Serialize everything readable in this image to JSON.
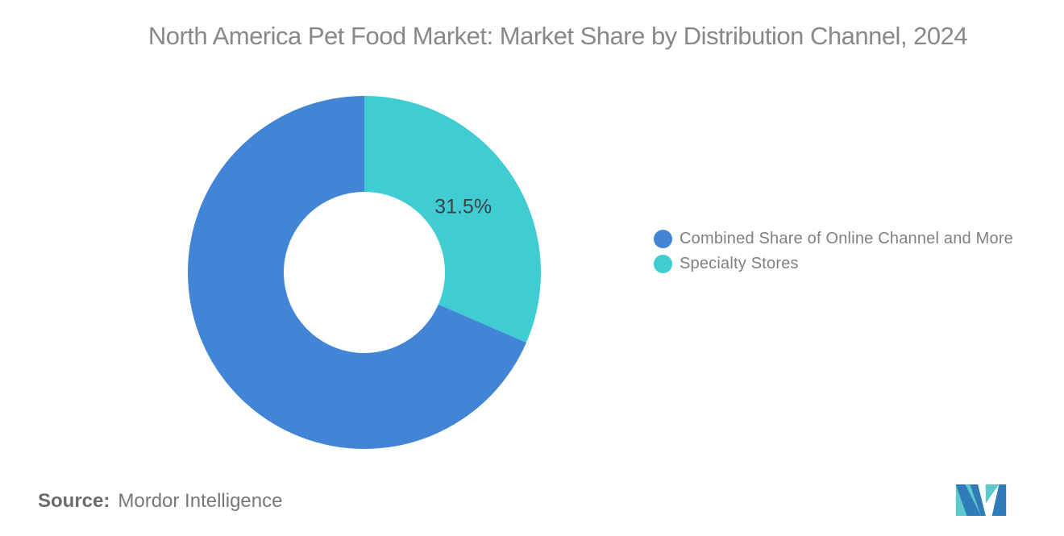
{
  "header": {
    "title": "North America Pet Food Market: Market Share by Distribution Channel, 2024"
  },
  "chart_data": {
    "type": "pie",
    "donut": true,
    "title": "North America Pet Food Market: Market Share by Distribution Channel, 2024",
    "start_angle_deg": 0,
    "direction": "clockwise",
    "inner_radius_ratio": 0.457,
    "slices": [
      {
        "label": "Specialty Stores",
        "value": 31.5,
        "color": "#3fccd2",
        "data_label": "31.5%"
      },
      {
        "label": "Combined Share of Online Channel and More",
        "value": 68.5,
        "color": "#4285d6",
        "data_label": ""
      }
    ],
    "data_label_color": "#3d4245",
    "legend_position": "right",
    "grid": false
  },
  "legend": {
    "items": [
      {
        "label": "Combined Share of Online Channel and More",
        "color": "#4285d6"
      },
      {
        "label": "Specialty Stores",
        "color": "#3fccd2"
      }
    ]
  },
  "footer": {
    "source_label": "Source:",
    "source_value": "Mordor Intelligence"
  },
  "logo": {
    "alt": "Mordor Intelligence logo",
    "teal": "#5ec9cd",
    "blue": "#2f7cb9"
  }
}
